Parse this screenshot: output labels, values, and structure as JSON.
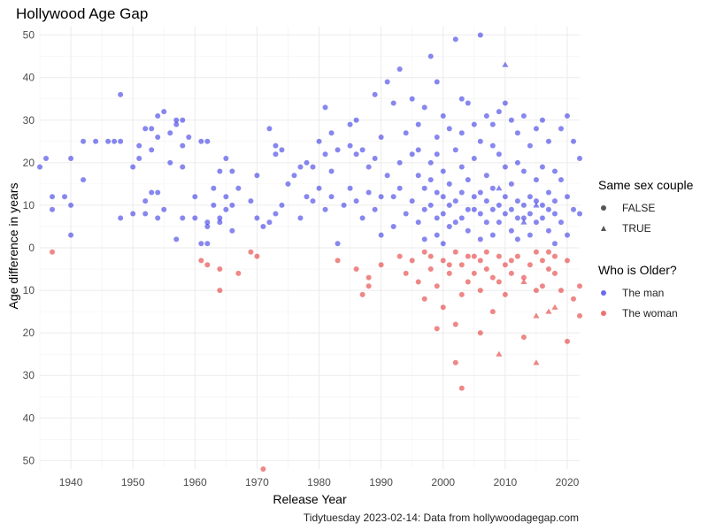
{
  "chart_data": {
    "type": "scatter",
    "title": "Hollywood Age Gap",
    "xlabel": "Release Year",
    "ylabel": "Age difference in years",
    "caption": "Tidytuesday 2023-02-14: Data from hollywoodagegap.com",
    "xlim": [
      1935,
      2022
    ],
    "ylim": [
      -52,
      52
    ],
    "x_ticks": [
      1940,
      1950,
      1960,
      1970,
      1980,
      1990,
      2000,
      2010,
      2020
    ],
    "y_ticks": [
      -50,
      -40,
      -30,
      -20,
      -10,
      0,
      10,
      20,
      30,
      40,
      50
    ],
    "y_tick_labels": [
      "50",
      "40",
      "30",
      "20",
      "10",
      "0",
      "10",
      "20",
      "30",
      "40",
      "50"
    ],
    "grid": true,
    "legend_position": "right",
    "legends": [
      {
        "title": "Same sex couple",
        "items": [
          {
            "label": "FALSE",
            "shape": "circle"
          },
          {
            "label": "TRUE",
            "shape": "triangle"
          }
        ]
      },
      {
        "title": "Who is Older?",
        "items": [
          {
            "label": "The man",
            "color": "#1010e0"
          },
          {
            "label": "The woman",
            "color": "#e01010"
          }
        ]
      }
    ],
    "series": [
      {
        "name": "The man",
        "color": "#1010e0",
        "shape": "circle",
        "points": [
          [
            1935,
            19
          ],
          [
            1936,
            21
          ],
          [
            1937,
            9
          ],
          [
            1937,
            12
          ],
          [
            1939,
            12
          ],
          [
            1940,
            10
          ],
          [
            1940,
            3
          ],
          [
            1940,
            21
          ],
          [
            1942,
            16
          ],
          [
            1942,
            25
          ],
          [
            1944,
            25
          ],
          [
            1946,
            25
          ],
          [
            1947,
            25
          ],
          [
            1948,
            25
          ],
          [
            1948,
            36
          ],
          [
            1948,
            7
          ],
          [
            1950,
            8
          ],
          [
            1950,
            19
          ],
          [
            1951,
            21
          ],
          [
            1951,
            24
          ],
          [
            1952,
            28
          ],
          [
            1952,
            11
          ],
          [
            1952,
            8
          ],
          [
            1953,
            13
          ],
          [
            1953,
            23
          ],
          [
            1953,
            28
          ],
          [
            1954,
            26
          ],
          [
            1954,
            31
          ],
          [
            1954,
            13
          ],
          [
            1954,
            7
          ],
          [
            1955,
            32
          ],
          [
            1955,
            9
          ],
          [
            1956,
            27
          ],
          [
            1956,
            20
          ],
          [
            1957,
            30
          ],
          [
            1957,
            29
          ],
          [
            1957,
            2
          ],
          [
            1958,
            30
          ],
          [
            1958,
            24
          ],
          [
            1958,
            7
          ],
          [
            1958,
            19
          ],
          [
            1959,
            26
          ],
          [
            1960,
            12
          ],
          [
            1960,
            7
          ],
          [
            1961,
            25
          ],
          [
            1961,
            1
          ],
          [
            1962,
            25
          ],
          [
            1962,
            5
          ],
          [
            1962,
            1
          ],
          [
            1962,
            6
          ],
          [
            1963,
            10
          ],
          [
            1963,
            14
          ],
          [
            1964,
            7
          ],
          [
            1964,
            18
          ],
          [
            1964,
            6
          ],
          [
            1965,
            21
          ],
          [
            1965,
            12
          ],
          [
            1965,
            9
          ],
          [
            1966,
            18
          ],
          [
            1966,
            10
          ],
          [
            1966,
            4
          ],
          [
            1967,
            14
          ],
          [
            1969,
            11
          ],
          [
            1970,
            17
          ],
          [
            1970,
            7
          ],
          [
            1971,
            5
          ],
          [
            1972,
            28
          ],
          [
            1972,
            6
          ],
          [
            1973,
            24
          ],
          [
            1973,
            22
          ],
          [
            1973,
            8
          ],
          [
            1974,
            10
          ],
          [
            1974,
            23
          ],
          [
            1975,
            15
          ],
          [
            1976,
            17
          ],
          [
            1977,
            19
          ],
          [
            1977,
            7
          ],
          [
            1978,
            20
          ],
          [
            1978,
            12
          ],
          [
            1979,
            19
          ],
          [
            1979,
            11
          ],
          [
            1980,
            25
          ],
          [
            1980,
            14
          ],
          [
            1981,
            33
          ],
          [
            1981,
            22
          ],
          [
            1981,
            9
          ],
          [
            1982,
            18
          ],
          [
            1982,
            27
          ],
          [
            1982,
            12
          ],
          [
            1983,
            23
          ],
          [
            1983,
            1
          ],
          [
            1984,
            10
          ],
          [
            1985,
            29
          ],
          [
            1985,
            24
          ],
          [
            1985,
            14
          ],
          [
            1986,
            30
          ],
          [
            1986,
            22
          ],
          [
            1986,
            11
          ],
          [
            1987,
            23
          ],
          [
            1987,
            7
          ],
          [
            1988,
            19
          ],
          [
            1988,
            13
          ],
          [
            1989,
            36
          ],
          [
            1989,
            21
          ],
          [
            1989,
            9
          ],
          [
            1990,
            12
          ],
          [
            1990,
            26
          ],
          [
            1990,
            3
          ],
          [
            1991,
            17
          ],
          [
            1991,
            39
          ],
          [
            1992,
            34
          ],
          [
            1992,
            12
          ],
          [
            1992,
            5
          ],
          [
            1993,
            42
          ],
          [
            1993,
            20
          ],
          [
            1993,
            14
          ],
          [
            1994,
            27
          ],
          [
            1994,
            8
          ],
          [
            1995,
            35
          ],
          [
            1995,
            22
          ],
          [
            1995,
            11
          ],
          [
            1996,
            29
          ],
          [
            1996,
            17
          ],
          [
            1996,
            6
          ],
          [
            1997,
            33
          ],
          [
            1997,
            14
          ],
          [
            1997,
            2
          ],
          [
            1998,
            45
          ],
          [
            1998,
            20
          ],
          [
            1998,
            10
          ],
          [
            1999,
            39
          ],
          [
            1999,
            26
          ],
          [
            1999,
            13
          ],
          [
            1999,
            3
          ],
          [
            2000,
            31
          ],
          [
            2000,
            18
          ],
          [
            2000,
            8
          ],
          [
            2000,
            1
          ],
          [
            2001,
            28
          ],
          [
            2001,
            15
          ],
          [
            2001,
            5
          ],
          [
            2002,
            49
          ],
          [
            2002,
            23
          ],
          [
            2002,
            11
          ],
          [
            2003,
            35
          ],
          [
            2003,
            19
          ],
          [
            2003,
            7
          ],
          [
            2004,
            34
          ],
          [
            2004,
            16
          ],
          [
            2004,
            4
          ],
          [
            2005,
            29
          ],
          [
            2005,
            21
          ],
          [
            2005,
            9
          ],
          [
            2006,
            50
          ],
          [
            2006,
            25
          ],
          [
            2006,
            13
          ],
          [
            2006,
            2
          ],
          [
            2007,
            31
          ],
          [
            2007,
            17
          ],
          [
            2007,
            6
          ],
          [
            2008,
            29
          ],
          [
            2008,
            14
          ],
          [
            2008,
            3
          ],
          [
            2009,
            32
          ],
          [
            2009,
            22
          ],
          [
            2009,
            10
          ],
          [
            2010,
            34
          ],
          [
            2010,
            19
          ],
          [
            2010,
            8
          ],
          [
            2011,
            30
          ],
          [
            2011,
            15
          ],
          [
            2011,
            4
          ],
          [
            2012,
            27
          ],
          [
            2012,
            11
          ],
          [
            2012,
            2
          ],
          [
            2013,
            31
          ],
          [
            2013,
            18
          ],
          [
            2013,
            7
          ],
          [
            2014,
            24
          ],
          [
            2014,
            12
          ],
          [
            2014,
            3
          ],
          [
            2015,
            28
          ],
          [
            2015,
            16
          ],
          [
            2015,
            6
          ],
          [
            2016,
            30
          ],
          [
            2016,
            19
          ],
          [
            2016,
            10
          ],
          [
            2017,
            25
          ],
          [
            2017,
            13
          ],
          [
            2017,
            4
          ],
          [
            2018,
            18
          ],
          [
            2018,
            8
          ],
          [
            2018,
            1
          ],
          [
            2019,
            28
          ],
          [
            2019,
            16
          ],
          [
            2019,
            6
          ],
          [
            2020,
            31
          ],
          [
            2020,
            12
          ],
          [
            2020,
            3
          ],
          [
            2021,
            25
          ],
          [
            2021,
            9
          ],
          [
            2022,
            21
          ],
          [
            2022,
            8
          ],
          [
            1996,
            23
          ],
          [
            1997,
            9
          ],
          [
            1998,
            16
          ],
          [
            1999,
            7
          ],
          [
            2000,
            12
          ],
          [
            2001,
            10
          ],
          [
            2002,
            6
          ],
          [
            2003,
            13
          ],
          [
            2004,
            9
          ],
          [
            2005,
            12
          ],
          [
            2006,
            8
          ],
          [
            2007,
            11
          ],
          [
            2008,
            9
          ],
          [
            2009,
            6
          ],
          [
            2010,
            12
          ],
          [
            2011,
            9
          ],
          [
            2012,
            7
          ],
          [
            2013,
            10
          ],
          [
            2014,
            8
          ],
          [
            2015,
            11
          ],
          [
            2016,
            7
          ],
          [
            2017,
            9
          ],
          [
            2018,
            11
          ],
          [
            1999,
            22
          ],
          [
            2003,
            27
          ],
          [
            2008,
            24
          ],
          [
            2012,
            20
          ]
        ]
      },
      {
        "name": "The woman",
        "color": "#e01010",
        "shape": "circle",
        "points": [
          [
            1937,
            -1
          ],
          [
            1961,
            -3
          ],
          [
            1962,
            -4
          ],
          [
            1964,
            -5
          ],
          [
            1964,
            -10
          ],
          [
            1967,
            -6
          ],
          [
            1969,
            -1
          ],
          [
            1970,
            -2
          ],
          [
            1971,
            -52
          ],
          [
            1983,
            -3
          ],
          [
            1986,
            -5
          ],
          [
            1987,
            -11
          ],
          [
            1988,
            -7
          ],
          [
            1988,
            -9
          ],
          [
            1990,
            -4
          ],
          [
            1993,
            -2
          ],
          [
            1994,
            -6
          ],
          [
            1995,
            -3
          ],
          [
            1996,
            -8
          ],
          [
            1997,
            -1
          ],
          [
            1997,
            -12
          ],
          [
            1998,
            -5
          ],
          [
            1998,
            -2
          ],
          [
            1999,
            -19
          ],
          [
            1999,
            -9
          ],
          [
            2000,
            -14
          ],
          [
            2000,
            -3
          ],
          [
            2001,
            -6
          ],
          [
            2002,
            -27
          ],
          [
            2002,
            -18
          ],
          [
            2002,
            -1
          ],
          [
            2003,
            -33
          ],
          [
            2003,
            -11
          ],
          [
            2003,
            -4
          ],
          [
            2004,
            -2
          ],
          [
            2004,
            -8
          ],
          [
            2005,
            -6
          ],
          [
            2006,
            -20
          ],
          [
            2006,
            -3
          ],
          [
            2006,
            -10
          ],
          [
            2007,
            -5
          ],
          [
            2007,
            -1
          ],
          [
            2008,
            -15
          ],
          [
            2008,
            -7
          ],
          [
            2009,
            -2
          ],
          [
            2010,
            -4
          ],
          [
            2010,
            -11
          ],
          [
            2011,
            -3
          ],
          [
            2011,
            -6
          ],
          [
            2012,
            -2
          ],
          [
            2013,
            -7
          ],
          [
            2013,
            -21
          ],
          [
            2014,
            -4
          ],
          [
            2015,
            -1
          ],
          [
            2015,
            -10
          ],
          [
            2016,
            -3
          ],
          [
            2016,
            -9
          ],
          [
            2017,
            -5
          ],
          [
            2017,
            -1
          ],
          [
            2018,
            -2
          ],
          [
            2018,
            -6
          ],
          [
            2019,
            -10
          ],
          [
            2020,
            -22
          ],
          [
            2020,
            -3
          ],
          [
            2021,
            -12
          ],
          [
            2022,
            -9
          ],
          [
            2022,
            -16
          ],
          [
            2001,
            -4
          ],
          [
            2005,
            -2
          ],
          [
            2009,
            -8
          ]
        ]
      },
      {
        "name": "TRUE",
        "color": "#1010e0",
        "shape": "triangle",
        "points": [
          [
            2010,
            43
          ],
          [
            2015,
            10
          ],
          [
            2013,
            6
          ],
          [
            2009,
            14
          ]
        ]
      },
      {
        "name": "TRUE",
        "color": "#e01010",
        "shape": "triangle",
        "points": [
          [
            2009,
            -25
          ],
          [
            2015,
            -27
          ],
          [
            2015,
            -16
          ],
          [
            2017,
            -15
          ],
          [
            2018,
            -14
          ],
          [
            2013,
            -8
          ]
        ]
      }
    ]
  }
}
